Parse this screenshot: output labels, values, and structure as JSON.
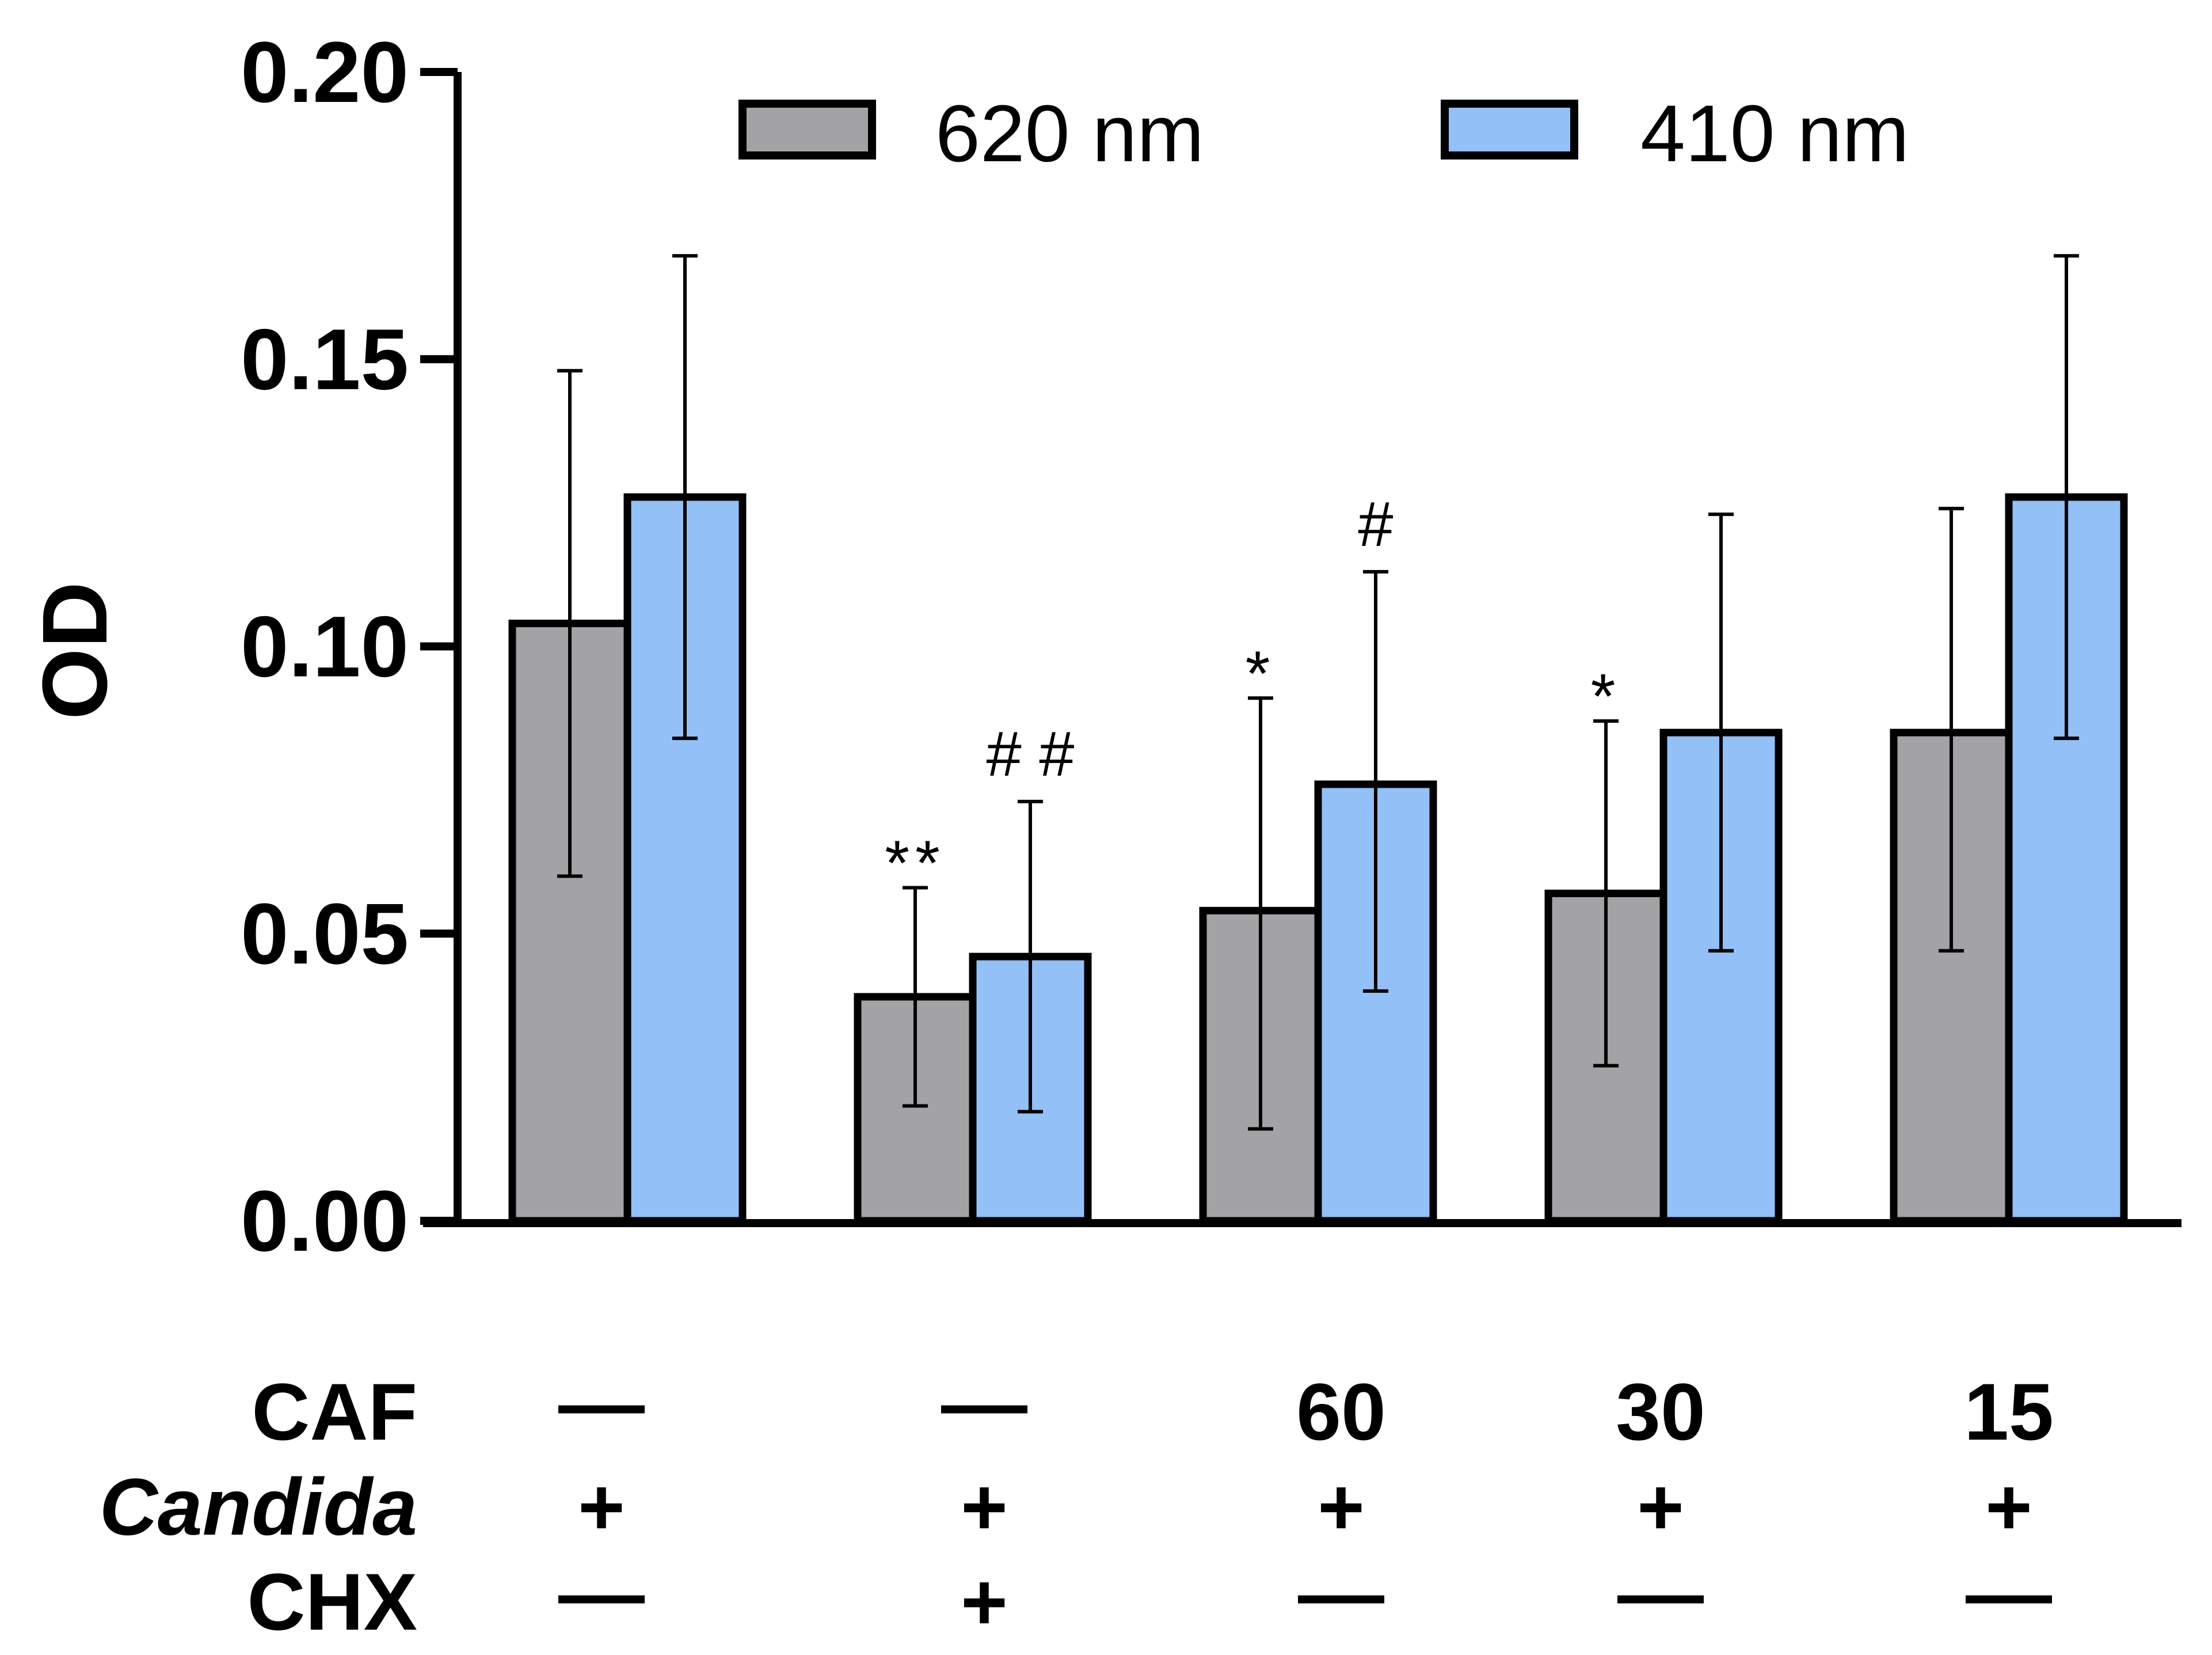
{
  "chart_data": {
    "type": "bar",
    "ylabel": "OD",
    "ylim": [
      0,
      0.2
    ],
    "yticks": [
      "0.00",
      "0.05",
      "0.10",
      "0.15",
      "0.20"
    ],
    "ytick_values": [
      0,
      0.05,
      0.1,
      0.15,
      0.2
    ],
    "grid": false,
    "legend_position": "top",
    "series": [
      {
        "name": "620 nm",
        "color": "#a3a3a6",
        "values": [
          0.104,
          0.039,
          0.054,
          0.057,
          0.085
        ],
        "error_low": [
          0.06,
          0.02,
          0.016,
          0.027,
          0.047
        ],
        "error_high": [
          0.148,
          0.058,
          0.091,
          0.087,
          0.124
        ],
        "annotations": [
          "",
          "**",
          "*",
          "*",
          ""
        ]
      },
      {
        "name": "410 nm",
        "color": "#92c0f7",
        "values": [
          0.126,
          0.046,
          0.076,
          0.085,
          0.126
        ],
        "error_low": [
          0.084,
          0.019,
          0.04,
          0.047,
          0.084
        ],
        "error_high": [
          0.168,
          0.073,
          0.113,
          0.123,
          0.168
        ],
        "annotations": [
          "",
          "# #",
          "#",
          "",
          ""
        ]
      }
    ],
    "condition_rows": [
      {
        "label": "CAF",
        "italic": false,
        "values": [
          "—",
          "—",
          "60",
          "30",
          "15"
        ]
      },
      {
        "label": "Candida",
        "italic": true,
        "values": [
          "+",
          "+",
          "+",
          "+",
          "+"
        ]
      },
      {
        "label": "CHX",
        "italic": false,
        "values": [
          "—",
          "+",
          "—",
          "—",
          "—"
        ]
      }
    ]
  }
}
